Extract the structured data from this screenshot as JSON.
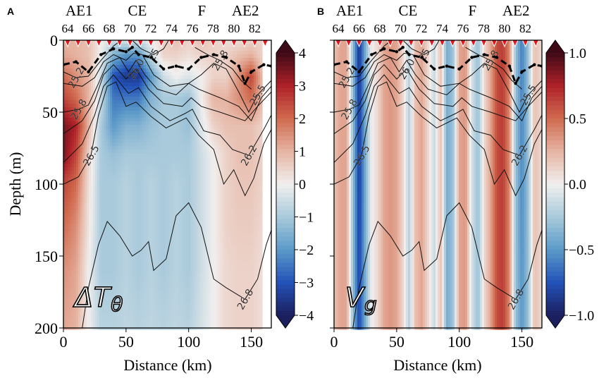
{
  "chart_data": {
    "type": "heatmap",
    "xlabel": "Distance (km)",
    "ylabel": "Depth (m)",
    "xlim": [
      0,
      166
    ],
    "ylim": [
      200,
      0
    ],
    "x_ticks": [
      0,
      50,
      100,
      150
    ],
    "y_ticks": [
      0,
      50,
      100,
      150,
      200
    ],
    "station_axis": {
      "ticks": [
        64,
        66,
        68,
        70,
        72,
        74,
        76,
        78,
        80,
        82
      ],
      "markers": [
        64,
        65,
        66,
        67,
        68,
        69,
        70,
        71,
        72,
        73,
        74,
        75,
        76,
        77,
        78,
        79,
        80,
        81,
        82,
        83
      ],
      "marker_color": "#e8141e",
      "features": [
        {
          "label": "AE1",
          "station": 65.1
        },
        {
          "label": "CE",
          "station": 70.7
        },
        {
          "label": "F",
          "station": 76.9
        },
        {
          "label": "AE2",
          "station": 81.1
        }
      ]
    },
    "colormap": [
      "#1b1f5e",
      "#2352b8",
      "#5c9ac8",
      "#a9cadb",
      "#f1efee",
      "#e6b4a2",
      "#d06a4f",
      "#ae2128",
      "#3f0a17"
    ],
    "panels": [
      {
        "panel_label": "A",
        "variable": {
          "base": "ΔT",
          "sub": "θ"
        },
        "colorbar": {
          "range": [
            -4,
            4
          ],
          "ticks": [
            "-4",
            "-3",
            "-2",
            "-1",
            "0",
            "1",
            "2",
            "3",
            "4"
          ],
          "extend": "both"
        },
        "grid": {
          "distance_km": [
            0,
            10,
            20,
            30,
            40,
            50,
            60,
            70,
            80,
            90,
            100,
            110,
            120,
            130,
            140,
            150,
            158
          ],
          "depth_m": [
            0,
            10,
            25,
            40,
            60,
            80,
            100,
            130,
            160,
            200
          ],
          "values": [
            [
              1.0,
              1.0,
              0.8,
              0.0,
              -0.5,
              -0.3,
              -0.5,
              0.0,
              0.5,
              0.8,
              0.5,
              0.8,
              0.5,
              0.3,
              0.3,
              0.5,
              0.5
            ],
            [
              1.2,
              1.0,
              0.8,
              0.0,
              -1.5,
              -2.0,
              -2.0,
              -0.5,
              0.5,
              0.5,
              0.3,
              0.5,
              0.5,
              0.5,
              0.8,
              1.0,
              0.5
            ],
            [
              2.0,
              1.5,
              1.0,
              -0.5,
              -3.0,
              -3.5,
              -3.5,
              -2.0,
              -0.5,
              0.0,
              -0.3,
              0.0,
              0.5,
              0.5,
              1.5,
              2.5,
              1.0
            ],
            [
              2.5,
              2.0,
              1.0,
              -0.5,
              -2.5,
              -2.5,
              -2.5,
              -1.5,
              -1.0,
              -1.0,
              -1.2,
              0.0,
              1.0,
              1.0,
              1.5,
              2.0,
              1.0
            ],
            [
              3.5,
              3.0,
              1.0,
              -1.0,
              -2.0,
              -1.5,
              -1.5,
              -1.2,
              -1.0,
              -1.0,
              -1.2,
              -0.3,
              0.5,
              0.8,
              0.8,
              0.8,
              0.5
            ],
            [
              3.5,
              2.5,
              0.5,
              -1.0,
              -1.2,
              -1.0,
              -1.0,
              -1.0,
              -1.0,
              -1.0,
              -1.0,
              -0.5,
              0.0,
              0.5,
              0.8,
              0.8,
              0.5
            ],
            [
              2.5,
              2.0,
              0.3,
              -1.0,
              -1.0,
              -0.8,
              -1.0,
              -0.8,
              -1.0,
              -0.8,
              -1.0,
              -0.5,
              0.0,
              0.5,
              0.7,
              0.7,
              0.5
            ],
            [
              2.0,
              1.5,
              0.2,
              -1.0,
              -1.0,
              -0.8,
              -1.0,
              -0.8,
              -1.0,
              -0.8,
              -1.0,
              -0.5,
              0.0,
              0.5,
              0.6,
              0.6,
              0.4
            ],
            [
              1.5,
              1.2,
              0.0,
              -1.0,
              -1.0,
              -0.8,
              -1.0,
              -0.8,
              -1.0,
              -0.8,
              -1.0,
              -0.5,
              0.0,
              0.4,
              0.5,
              0.5,
              0.3
            ],
            [
              1.2,
              1.0,
              0.0,
              -0.8,
              -0.8,
              -0.7,
              -0.8,
              -0.7,
              -0.8,
              -0.7,
              -0.8,
              -0.4,
              0.0,
              0.4,
              0.5,
              0.5,
              0.3
            ]
          ]
        }
      },
      {
        "panel_label": "B",
        "variable": {
          "base": "V",
          "sub": "g"
        },
        "colorbar": {
          "range": [
            -1,
            1
          ],
          "ticks": [
            "-1.0",
            "-0.5",
            "0.0",
            "0.5",
            "1.0"
          ],
          "extend": "both"
        },
        "grid": {
          "distance_km": [
            0,
            5,
            10,
            15,
            20,
            25,
            30,
            35,
            40,
            45,
            50,
            55,
            60,
            65,
            70,
            75,
            80,
            85,
            90,
            95,
            100,
            105,
            110,
            115,
            120,
            125,
            130,
            135,
            140,
            145,
            150,
            155,
            160,
            166
          ],
          "depth_m": [
            0,
            200
          ],
          "values": [
            [
              0.2,
              0.3,
              0.3,
              -0.3,
              -0.9,
              -0.4,
              0.0,
              0.1,
              0.3,
              0.35,
              0.3,
              0.1,
              -0.2,
              0.2,
              0.3,
              0.1,
              -0.15,
              0.2,
              -0.4,
              -0.3,
              0.3,
              0.35,
              -0.1,
              -0.3,
              0.1,
              0.3,
              0.6,
              0.65,
              0.4,
              -0.3,
              -0.6,
              -0.3,
              0.2,
              0.1
            ],
            [
              0.2,
              0.3,
              0.3,
              -0.3,
              -0.8,
              -0.4,
              0.0,
              0.1,
              0.3,
              0.35,
              0.3,
              0.1,
              -0.2,
              0.2,
              0.3,
              0.1,
              -0.15,
              0.2,
              -0.4,
              -0.3,
              0.3,
              0.35,
              -0.1,
              -0.3,
              0.1,
              0.3,
              0.6,
              0.65,
              0.4,
              -0.3,
              -0.5,
              -0.3,
              0.2,
              0.1
            ]
          ]
        }
      }
    ],
    "mixed_layer": [
      [
        0,
        17
      ],
      [
        10,
        15
      ],
      [
        20,
        22
      ],
      [
        30,
        10
      ],
      [
        40,
        6
      ],
      [
        50,
        8
      ],
      [
        55,
        5
      ],
      [
        60,
        10
      ],
      [
        70,
        12
      ],
      [
        80,
        20
      ],
      [
        90,
        18
      ],
      [
        100,
        20
      ],
      [
        110,
        12
      ],
      [
        120,
        10
      ],
      [
        130,
        12
      ],
      [
        140,
        18
      ],
      [
        145,
        30
      ],
      [
        150,
        22
      ],
      [
        160,
        17
      ],
      [
        166,
        18
      ]
    ],
    "contours": [
      {
        "level": "25",
        "points": [
          [
            55,
            0
          ],
          [
            62,
            6
          ],
          [
            72,
            10
          ],
          [
            80,
            6
          ],
          [
            84,
            0
          ]
        ],
        "label_at": 2
      },
      {
        "level": "25.2",
        "points": [
          [
            0,
            22
          ],
          [
            10,
            26
          ],
          [
            20,
            25
          ],
          [
            30,
            14
          ],
          [
            40,
            4
          ],
          [
            46,
            0
          ]
        ],
        "label_at": 1
      },
      {
        "level": "25.5",
        "points": [
          [
            0,
            30
          ],
          [
            15,
            32
          ],
          [
            25,
            26
          ],
          [
            32,
            15
          ],
          [
            40,
            10
          ],
          [
            50,
            14
          ],
          [
            56,
            9
          ],
          [
            63,
            10
          ],
          [
            72,
            24
          ],
          [
            85,
            32
          ],
          [
            100,
            30
          ],
          [
            110,
            24
          ],
          [
            120,
            16
          ],
          [
            130,
            20
          ],
          [
            140,
            36
          ],
          [
            148,
            50
          ],
          [
            155,
            38
          ],
          [
            166,
            28
          ]
        ],
        "label_at": 16
      },
      {
        "level": "25.8",
        "points": [
          [
            0,
            50
          ],
          [
            12,
            48
          ],
          [
            20,
            45
          ],
          [
            28,
            30
          ],
          [
            35,
            16
          ],
          [
            45,
            12
          ],
          [
            52,
            22
          ],
          [
            58,
            14
          ],
          [
            65,
            24
          ],
          [
            75,
            34
          ],
          [
            90,
            38
          ],
          [
            100,
            30
          ],
          [
            108,
            34
          ],
          [
            125,
            40
          ],
          [
            140,
            46
          ],
          [
            150,
            56
          ],
          [
            158,
            40
          ],
          [
            166,
            32
          ]
        ],
        "label_at": 1
      },
      {
        "level": "25.8",
        "points": [
          [
            105,
            5
          ],
          [
            115,
            10
          ],
          [
            125,
            14
          ],
          [
            135,
            20
          ],
          [
            142,
            28
          ],
          [
            150,
            34
          ]
        ],
        "label_at": 2
      },
      {
        "level": "26.0",
        "points": [
          [
            0,
            65
          ],
          [
            15,
            56
          ],
          [
            25,
            42
          ],
          [
            32,
            24
          ],
          [
            40,
            17
          ],
          [
            50,
            27
          ],
          [
            58,
            20
          ],
          [
            68,
            34
          ],
          [
            80,
            44
          ],
          [
            95,
            46
          ],
          [
            102,
            40
          ],
          [
            110,
            46
          ],
          [
            125,
            50
          ],
          [
            145,
            56
          ],
          [
            155,
            46
          ],
          [
            166,
            36
          ]
        ],
        "label_at": 6
      },
      {
        "level": "26.2",
        "points": [
          [
            0,
            85
          ],
          [
            15,
            72
          ],
          [
            25,
            52
          ],
          [
            32,
            32
          ],
          [
            40,
            24
          ],
          [
            52,
            37
          ],
          [
            60,
            33
          ],
          [
            70,
            46
          ],
          [
            85,
            56
          ],
          [
            97,
            51
          ],
          [
            103,
            48
          ],
          [
            112,
            63
          ],
          [
            125,
            66
          ],
          [
            135,
            76
          ],
          [
            148,
            80
          ],
          [
            160,
            62
          ],
          [
            166,
            52
          ]
        ],
        "label_at": 14
      },
      {
        "level": "26.5",
        "points": [
          [
            0,
            100
          ],
          [
            12,
            95
          ],
          [
            22,
            80
          ],
          [
            28,
            52
          ],
          [
            35,
            32
          ],
          [
            42,
            29
          ],
          [
            50,
            46
          ],
          [
            58,
            43
          ],
          [
            70,
            53
          ],
          [
            82,
            61
          ],
          [
            98,
            54
          ],
          [
            108,
            66
          ],
          [
            120,
            76
          ],
          [
            128,
            100
          ],
          [
            136,
            90
          ],
          [
            145,
            108
          ],
          [
            152,
            96
          ],
          [
            160,
            72
          ],
          [
            166,
            62
          ]
        ],
        "label_at": 2
      },
      {
        "level": "26.8",
        "points": [
          [
            15,
            200
          ],
          [
            20,
            172
          ],
          [
            28,
            142
          ],
          [
            35,
            126
          ],
          [
            45,
            136
          ],
          [
            55,
            150
          ],
          [
            62,
            146
          ],
          [
            68,
            140
          ],
          [
            72,
            160
          ],
          [
            82,
            152
          ],
          [
            90,
            122
          ],
          [
            100,
            113
          ],
          [
            110,
            130
          ],
          [
            120,
            166
          ],
          [
            130,
            172
          ],
          [
            145,
            180
          ],
          [
            155,
            166
          ],
          [
            162,
            142
          ],
          [
            166,
            132
          ]
        ],
        "label_at": 15
      }
    ]
  }
}
